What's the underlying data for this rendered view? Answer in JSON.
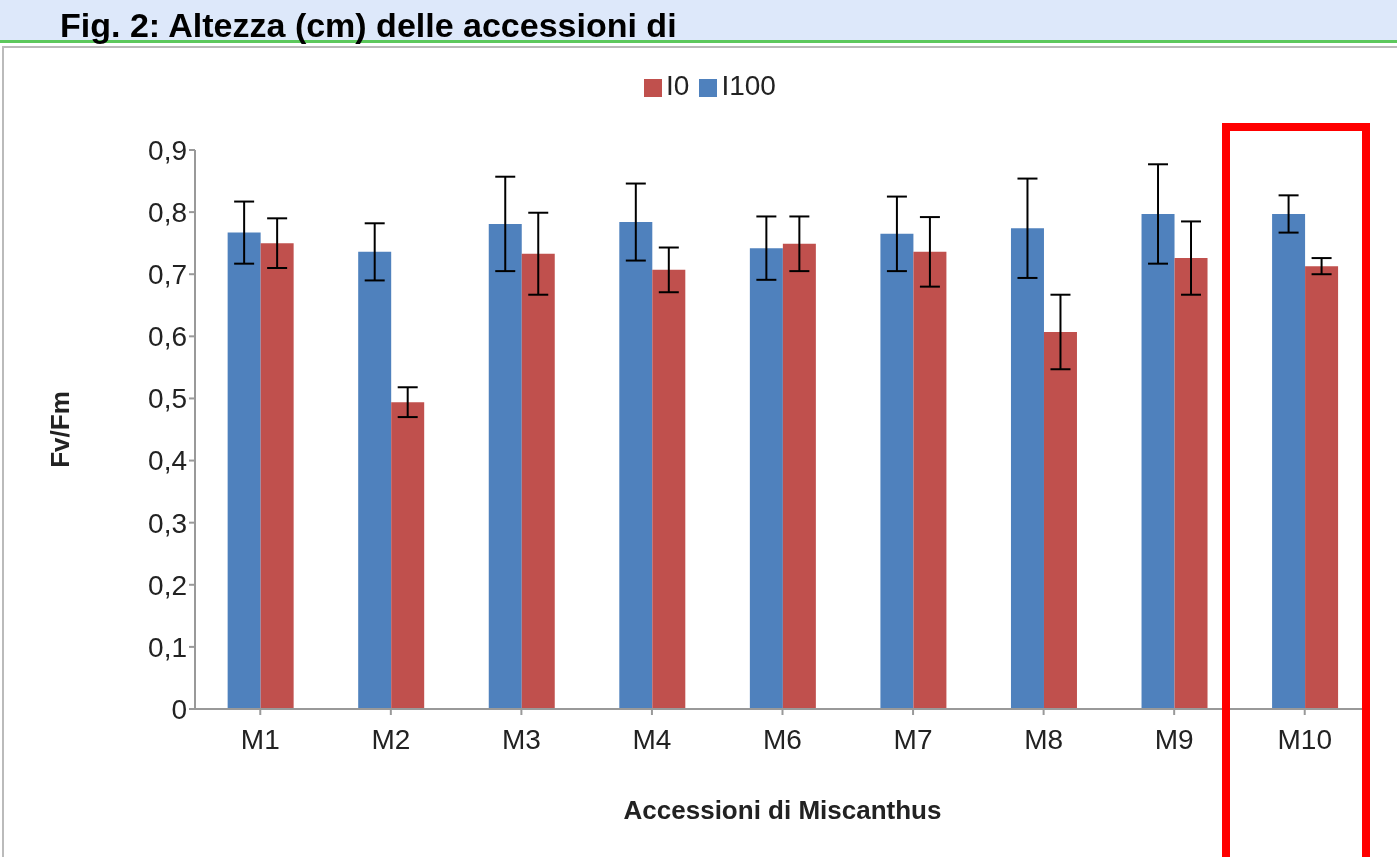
{
  "chart_data": {
    "type": "bar",
    "title": "Fig. 2: Altezza (cm) delle accessioni di",
    "xlabel": "Accessioni di Miscanthus",
    "ylabel": "Fv/Fm",
    "categories": [
      "M1",
      "M2",
      "M3",
      "M4",
      "M6",
      "M7",
      "M8",
      "M9",
      "M10"
    ],
    "series": [
      {
        "name": "I100",
        "color": "#4f81bd",
        "values": [
          0.767,
          0.736,
          0.781,
          0.784,
          0.742,
          0.765,
          0.774,
          0.797,
          0.797
        ],
        "errors": [
          0.05,
          0.046,
          0.076,
          0.062,
          0.051,
          0.06,
          0.08,
          0.08,
          0.03
        ]
      },
      {
        "name": "I0",
        "color": "#c0504d",
        "values": [
          0.75,
          0.494,
          0.733,
          0.707,
          0.749,
          0.736,
          0.607,
          0.726,
          0.713
        ],
        "errors": [
          0.04,
          0.024,
          0.066,
          0.036,
          0.044,
          0.056,
          0.06,
          0.059,
          0.013
        ]
      }
    ],
    "ylim": [
      0,
      0.9
    ],
    "yticks": [
      0,
      {
        "value": 0.1,
        "label": "0,1"
      },
      {
        "value": 0.2,
        "label": "0,2"
      },
      {
        "value": 0.3,
        "label": "0,3"
      },
      {
        "value": 0.4,
        "label": "0,4"
      },
      {
        "value": 0.5,
        "label": "0,5"
      },
      {
        "value": 0.6,
        "label": "0,6"
      },
      {
        "value": 0.7,
        "label": "0,7"
      },
      {
        "value": 0.8,
        "label": "0,8"
      },
      {
        "value": 0.9,
        "label": "0,9"
      }
    ],
    "grid": false,
    "legend": "top"
  }
}
